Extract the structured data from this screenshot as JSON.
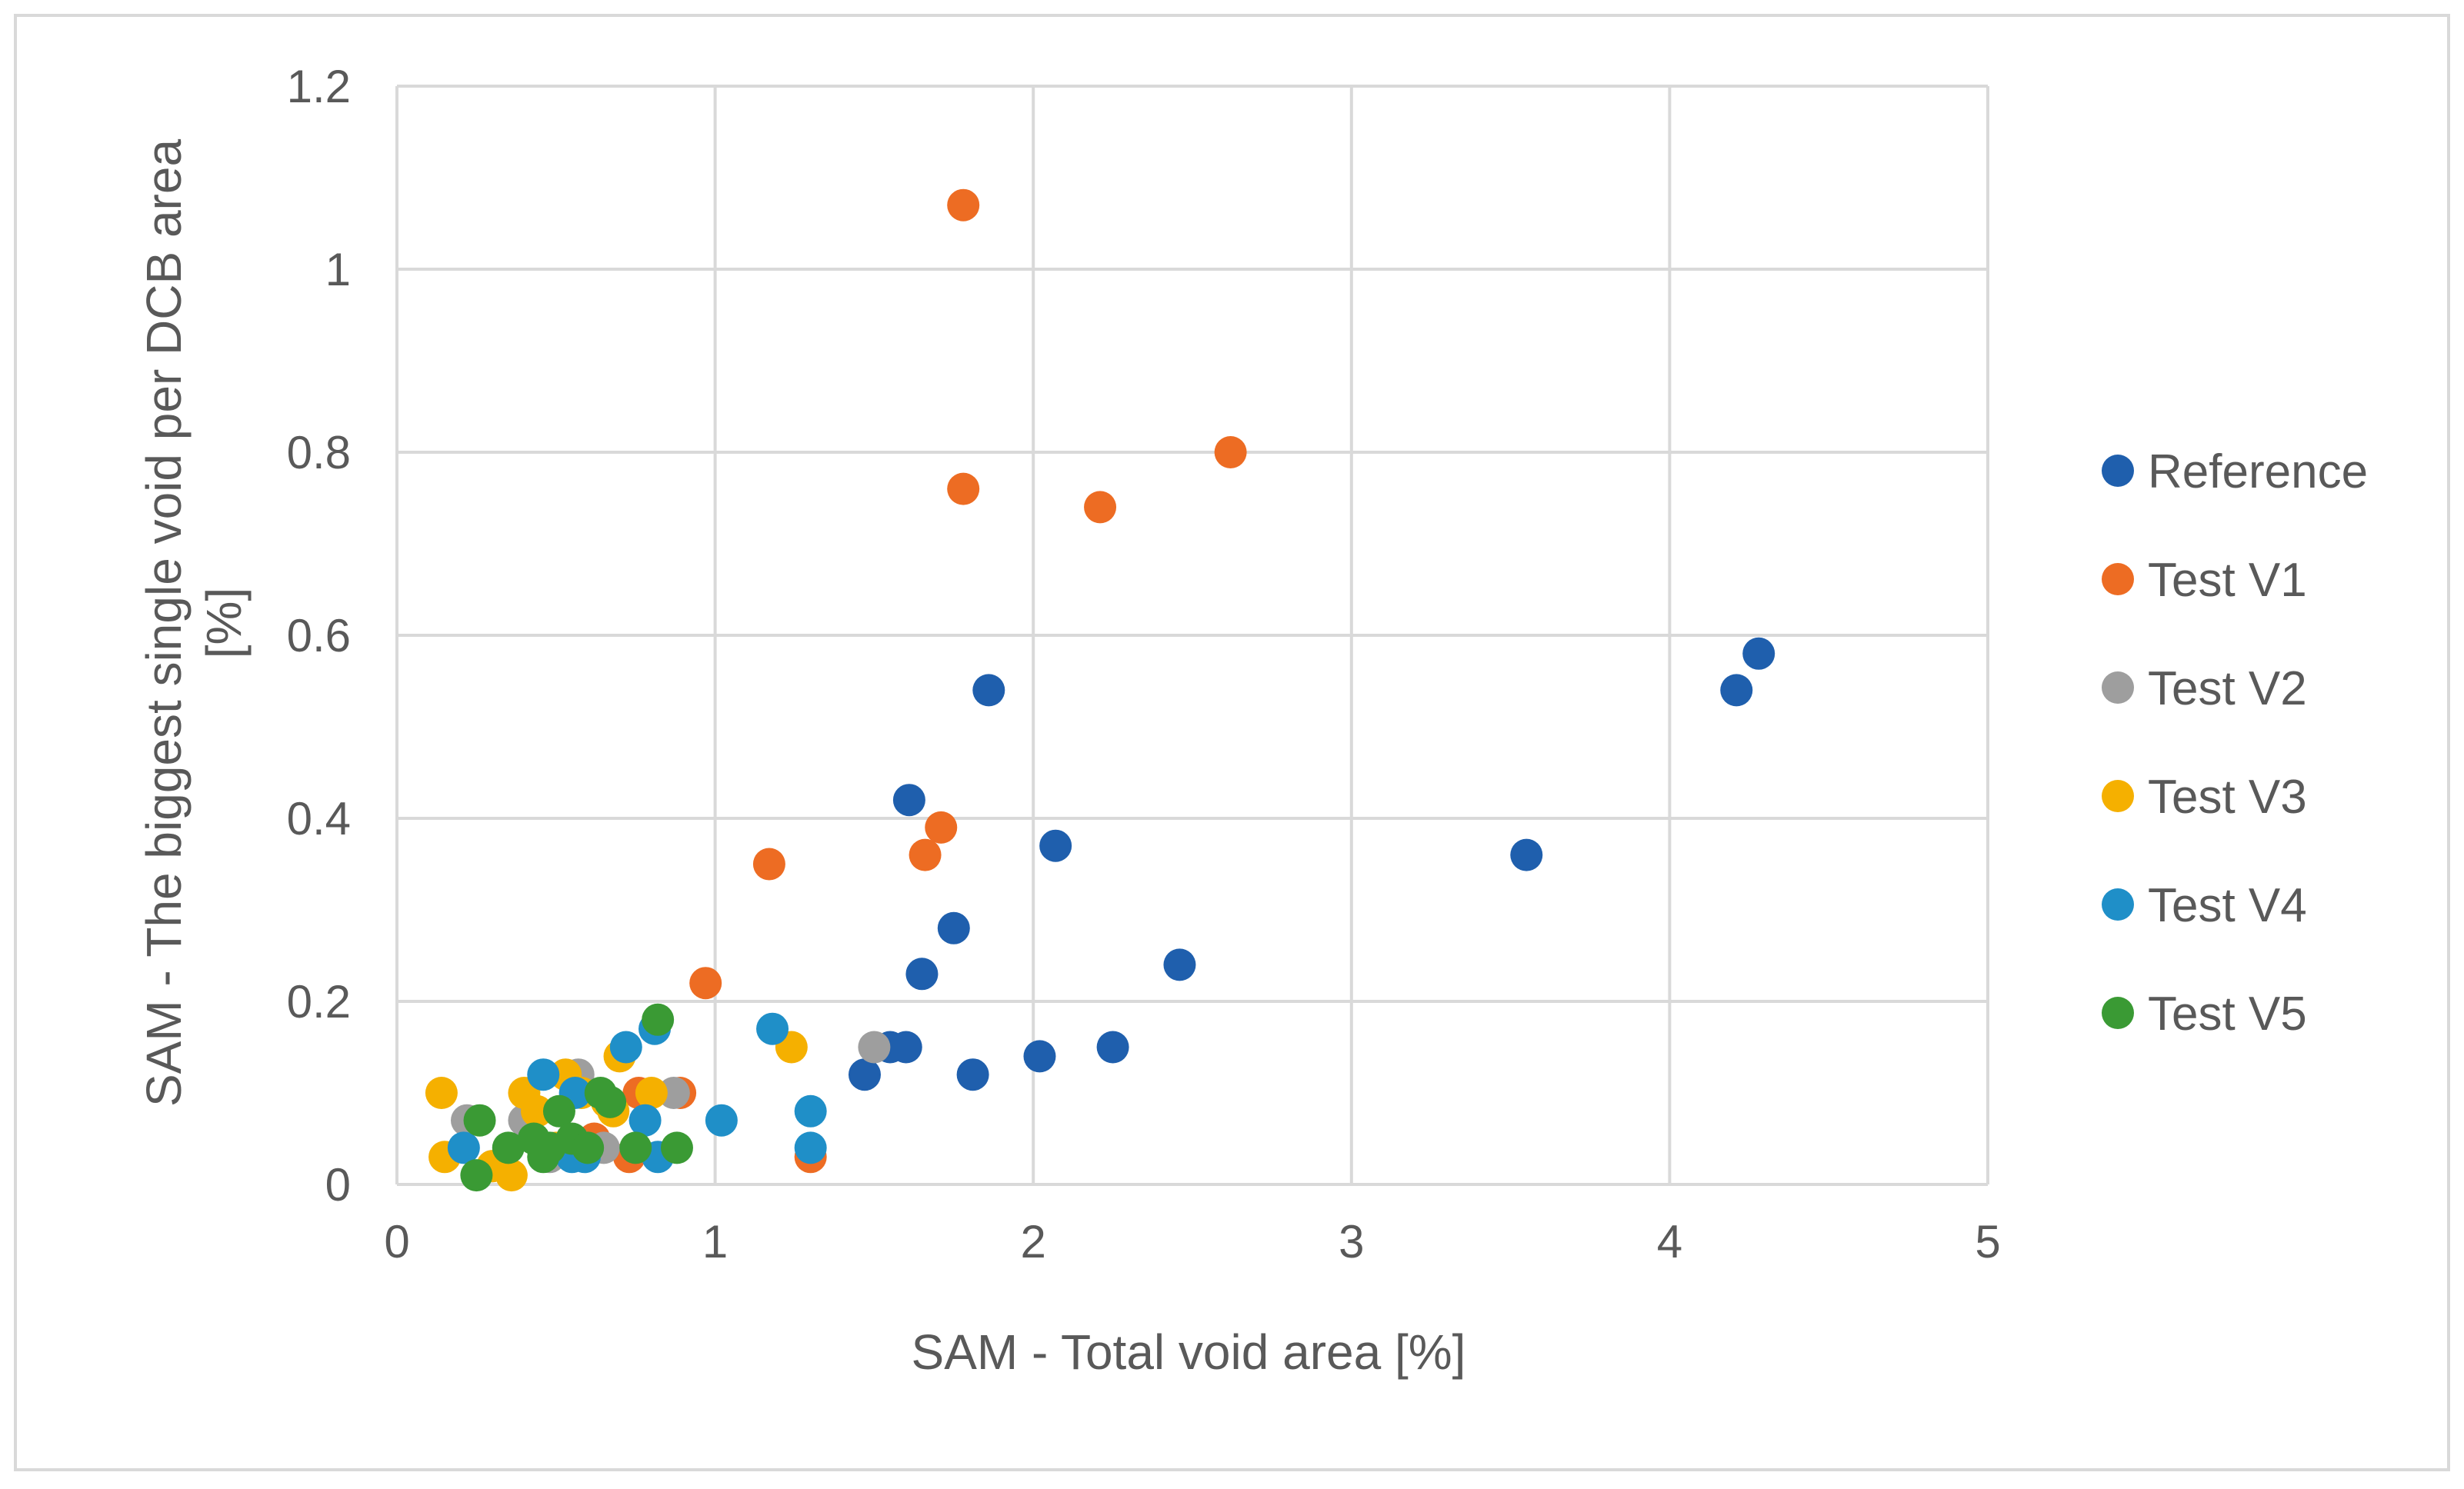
{
  "chart_data": {
    "type": "scatter",
    "title": "",
    "xlabel": "SAM - Total void area [%]",
    "ylabel": "SAM - The biggest single void per DCB area [%]",
    "xlim": [
      0,
      5
    ],
    "ylim": [
      0,
      1.2
    ],
    "xticks": [
      0,
      1,
      2,
      3,
      4,
      5
    ],
    "yticks": [
      0,
      0.2,
      0.4,
      0.6,
      0.8,
      1,
      1.2
    ],
    "xtick_labels": [
      "0",
      "1",
      "2",
      "3",
      "4",
      "5"
    ],
    "ytick_labels": [
      "0",
      "0.2",
      "0.4",
      "0.6",
      "0.8",
      "1",
      "1.2"
    ],
    "grid": true,
    "legend_position": "right",
    "series": [
      {
        "name": "Reference",
        "color": "#1f5fad",
        "points": [
          [
            1.47,
            0.12
          ],
          [
            1.55,
            0.15
          ],
          [
            1.6,
            0.15
          ],
          [
            1.61,
            0.42
          ],
          [
            1.65,
            0.23
          ],
          [
            1.75,
            0.28
          ],
          [
            1.81,
            0.12
          ],
          [
            1.86,
            0.54
          ],
          [
            2.02,
            0.14
          ],
          [
            2.07,
            0.37
          ],
          [
            2.25,
            0.15
          ],
          [
            2.46,
            0.24
          ],
          [
            3.55,
            0.36
          ],
          [
            4.21,
            0.54
          ],
          [
            4.28,
            0.58
          ]
        ]
      },
      {
        "name": "Test V1",
        "color": "#ed6c23",
        "points": [
          [
            1.78,
            1.07
          ],
          [
            2.62,
            0.8
          ],
          [
            1.78,
            0.76
          ],
          [
            2.21,
            0.74
          ],
          [
            1.71,
            0.39
          ],
          [
            1.66,
            0.36
          ],
          [
            1.17,
            0.35
          ],
          [
            0.97,
            0.22
          ],
          [
            1.3,
            0.03
          ],
          [
            0.73,
            0.03
          ],
          [
            0.76,
            0.1
          ],
          [
            0.89,
            0.1
          ],
          [
            0.62,
            0.05
          ]
        ]
      },
      {
        "name": "Test V2",
        "color": "#9e9e9e",
        "points": [
          [
            1.5,
            0.15
          ],
          [
            0.22,
            0.07
          ],
          [
            0.4,
            0.07
          ],
          [
            0.57,
            0.12
          ],
          [
            0.65,
            0.04
          ],
          [
            0.87,
            0.1
          ],
          [
            0.48,
            0.03
          ],
          [
            0.3,
            0.02
          ]
        ]
      },
      {
        "name": "Test V3",
        "color": "#f5b000",
        "points": [
          [
            0.14,
            0.1
          ],
          [
            0.15,
            0.03
          ],
          [
            0.3,
            0.02
          ],
          [
            0.36,
            0.01
          ],
          [
            0.4,
            0.1
          ],
          [
            0.44,
            0.08
          ],
          [
            0.53,
            0.12
          ],
          [
            0.58,
            0.1
          ],
          [
            0.66,
            0.09
          ],
          [
            0.68,
            0.08
          ],
          [
            0.7,
            0.14
          ],
          [
            0.8,
            0.1
          ],
          [
            1.24,
            0.15
          ],
          [
            0.5,
            0.04
          ]
        ]
      },
      {
        "name": "Test V4",
        "color": "#1f8fc8",
        "points": [
          [
            0.21,
            0.04
          ],
          [
            0.46,
            0.12
          ],
          [
            0.56,
            0.1
          ],
          [
            0.59,
            0.03
          ],
          [
            0.72,
            0.15
          ],
          [
            0.78,
            0.07
          ],
          [
            0.81,
            0.17
          ],
          [
            0.82,
            0.03
          ],
          [
            1.02,
            0.07
          ],
          [
            1.18,
            0.17
          ],
          [
            1.3,
            0.08
          ],
          [
            1.3,
            0.04
          ],
          [
            0.55,
            0.03
          ]
        ]
      },
      {
        "name": "Test V5",
        "color": "#3a9a34",
        "points": [
          [
            0.25,
            0.01
          ],
          [
            0.26,
            0.07
          ],
          [
            0.35,
            0.04
          ],
          [
            0.43,
            0.05
          ],
          [
            0.46,
            0.03
          ],
          [
            0.51,
            0.08
          ],
          [
            0.55,
            0.05
          ],
          [
            0.6,
            0.04
          ],
          [
            0.64,
            0.1
          ],
          [
            0.67,
            0.09
          ],
          [
            0.75,
            0.04
          ],
          [
            0.82,
            0.18
          ],
          [
            0.88,
            0.04
          ],
          [
            0.48,
            0.04
          ]
        ]
      }
    ]
  }
}
